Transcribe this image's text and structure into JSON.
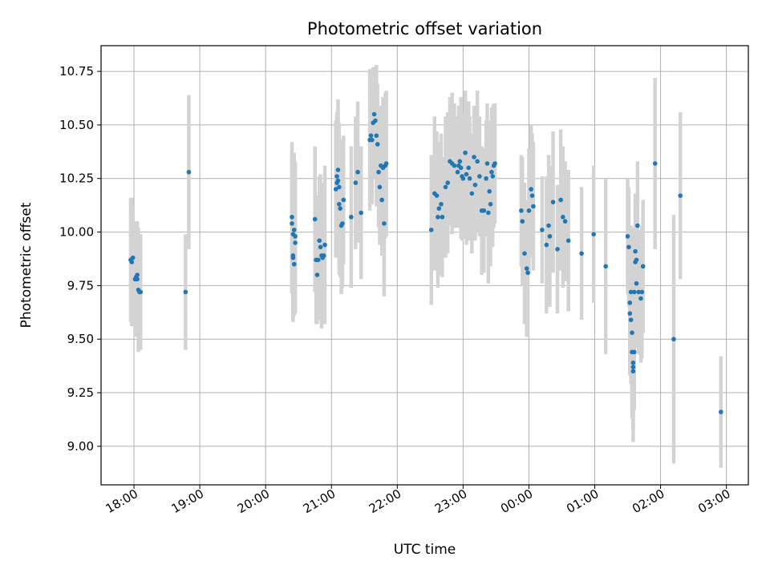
{
  "chart_data": {
    "type": "scatter",
    "title": "Photometric offset variation",
    "xlabel": "UTC time",
    "ylabel": "Photometric offset",
    "grid": true,
    "legend": "none",
    "x_unit": "UTC date-time",
    "xlim": [
      "17:30",
      "03:20"
    ],
    "ylim": [
      8.82,
      10.87
    ],
    "x_ticks": [
      "18:00",
      "19:00",
      "20:00",
      "21:00",
      "22:00",
      "23:00",
      "00:00",
      "01:00",
      "02:00",
      "03:00"
    ],
    "y_ticks": [
      "9.00",
      "9.25",
      "9.50",
      "9.75",
      "10.00",
      "10.25",
      "10.50",
      "10.75"
    ],
    "colors": {
      "marker": "#1f77b4",
      "errorbar": "#d3d3d3",
      "grid": "#b0b0b0"
    },
    "series": [
      {
        "points": [
          {
            "t": "17:57",
            "y": 9.87,
            "err": 0.29
          },
          {
            "t": "17:58",
            "y": 9.86,
            "err": 0.3
          },
          {
            "t": "17:59",
            "y": 9.88,
            "err": 0.24
          },
          {
            "t": "18:01",
            "y": 9.78,
            "err": 0.27
          },
          {
            "t": "18:02",
            "y": 9.79,
            "err": 0.26
          },
          {
            "t": "18:03",
            "y": 9.8,
            "err": 0.25
          },
          {
            "t": "18:03",
            "y": 9.78,
            "err": 0.24
          },
          {
            "t": "18:04",
            "y": 9.73,
            "err": 0.29
          },
          {
            "t": "18:05",
            "y": 9.72,
            "err": 0.27
          },
          {
            "t": "18:06",
            "y": 9.72,
            "err": 0.27
          },
          {
            "t": "18:47",
            "y": 9.72,
            "err": 0.27
          },
          {
            "t": "18:50",
            "y": 10.28,
            "err": 0.36
          },
          {
            "t": "20:24",
            "y": 10.07,
            "err": 0.35
          },
          {
            "t": "20:24",
            "y": 10.04,
            "err": 0.33
          },
          {
            "t": "20:25",
            "y": 9.99,
            "err": 0.35
          },
          {
            "t": "20:25",
            "y": 9.89,
            "err": 0.31
          },
          {
            "t": "20:25",
            "y": 9.88,
            "err": 0.28
          },
          {
            "t": "20:26",
            "y": 9.85,
            "err": 0.24
          },
          {
            "t": "20:26",
            "y": 10.01,
            "err": 0.36
          },
          {
            "t": "20:27",
            "y": 9.95,
            "err": 0.33
          },
          {
            "t": "20:27",
            "y": 9.98,
            "err": 0.35
          },
          {
            "t": "20:45",
            "y": 10.06,
            "err": 0.34
          },
          {
            "t": "20:46",
            "y": 9.87,
            "err": 0.3
          },
          {
            "t": "20:47",
            "y": 9.8,
            "err": 0.23
          },
          {
            "t": "20:48",
            "y": 9.87,
            "err": 0.27
          },
          {
            "t": "20:49",
            "y": 9.96,
            "err": 0.3
          },
          {
            "t": "20:50",
            "y": 9.93,
            "err": 0.34
          },
          {
            "t": "20:51",
            "y": 9.89,
            "err": 0.34
          },
          {
            "t": "20:52",
            "y": 9.88,
            "err": 0.29
          },
          {
            "t": "20:53",
            "y": 9.89,
            "err": 0.32
          },
          {
            "t": "20:54",
            "y": 9.94,
            "err": 0.37
          },
          {
            "t": "21:04",
            "y": 10.2,
            "err": 0.32
          },
          {
            "t": "21:05",
            "y": 10.23,
            "err": 0.33
          },
          {
            "t": "21:05",
            "y": 10.26,
            "err": 0.3
          },
          {
            "t": "21:06",
            "y": 10.29,
            "err": 0.33
          },
          {
            "t": "21:06",
            "y": 10.24,
            "err": 0.34
          },
          {
            "t": "21:07",
            "y": 10.21,
            "err": 0.3
          },
          {
            "t": "21:07",
            "y": 10.13,
            "err": 0.33
          },
          {
            "t": "21:08",
            "y": 10.11,
            "err": 0.32
          },
          {
            "t": "21:09",
            "y": 10.03,
            "err": 0.32
          },
          {
            "t": "21:10",
            "y": 10.04,
            "err": 0.3
          },
          {
            "t": "21:11",
            "y": 10.15,
            "err": 0.3
          },
          {
            "t": "21:18",
            "y": 10.07,
            "err": 0.33
          },
          {
            "t": "21:22",
            "y": 10.23,
            "err": 0.31
          },
          {
            "t": "21:24",
            "y": 10.28,
            "err": 0.33
          },
          {
            "t": "21:27",
            "y": 10.09,
            "err": 0.31
          },
          {
            "t": "21:35",
            "y": 10.43,
            "err": 0.33
          },
          {
            "t": "21:36",
            "y": 10.45,
            "err": 0.31
          },
          {
            "t": "21:37",
            "y": 10.43,
            "err": 0.3
          },
          {
            "t": "21:38",
            "y": 10.51,
            "err": 0.26
          },
          {
            "t": "21:39",
            "y": 10.55,
            "err": 0.21
          },
          {
            "t": "21:40",
            "y": 10.52,
            "err": 0.24
          },
          {
            "t": "21:41",
            "y": 10.45,
            "err": 0.33
          },
          {
            "t": "21:42",
            "y": 10.41,
            "err": 0.28
          },
          {
            "t": "21:43",
            "y": 10.28,
            "err": 0.26
          },
          {
            "t": "21:44",
            "y": 10.21,
            "err": 0.27
          },
          {
            "t": "21:45",
            "y": 10.31,
            "err": 0.28
          },
          {
            "t": "21:46",
            "y": 10.15,
            "err": 0.26
          },
          {
            "t": "21:47",
            "y": 10.3,
            "err": 0.33
          },
          {
            "t": "21:48",
            "y": 10.04,
            "err": 0.34
          },
          {
            "t": "21:49",
            "y": 10.31,
            "err": 0.34
          },
          {
            "t": "21:50",
            "y": 10.32,
            "err": 0.34
          },
          {
            "t": "22:31",
            "y": 10.01,
            "err": 0.35
          },
          {
            "t": "22:34",
            "y": 10.18,
            "err": 0.36
          },
          {
            "t": "22:36",
            "y": 10.17,
            "err": 0.3
          },
          {
            "t": "22:37",
            "y": 10.07,
            "err": 0.33
          },
          {
            "t": "22:38",
            "y": 10.11,
            "err": 0.31
          },
          {
            "t": "22:40",
            "y": 10.13,
            "err": 0.33
          },
          {
            "t": "22:41",
            "y": 10.07,
            "err": 0.28
          },
          {
            "t": "22:44",
            "y": 10.21,
            "err": 0.33
          },
          {
            "t": "22:46",
            "y": 10.23,
            "err": 0.33
          },
          {
            "t": "22:48",
            "y": 10.33,
            "err": 0.3
          },
          {
            "t": "22:50",
            "y": 10.32,
            "err": 0.33
          },
          {
            "t": "22:52",
            "y": 10.31,
            "err": 0.29
          },
          {
            "t": "22:55",
            "y": 10.28,
            "err": 0.26
          },
          {
            "t": "22:56",
            "y": 10.31,
            "err": 0.28
          },
          {
            "t": "22:57",
            "y": 10.33,
            "err": 0.26
          },
          {
            "t": "22:58",
            "y": 10.3,
            "err": 0.33
          },
          {
            "t": "22:59",
            "y": 10.26,
            "err": 0.3
          },
          {
            "t": "23:00",
            "y": 10.25,
            "err": 0.28
          },
          {
            "t": "23:02",
            "y": 10.37,
            "err": 0.29
          },
          {
            "t": "23:03",
            "y": 10.27,
            "err": 0.33
          },
          {
            "t": "23:05",
            "y": 10.3,
            "err": 0.31
          },
          {
            "t": "23:06",
            "y": 10.25,
            "err": 0.29
          },
          {
            "t": "23:08",
            "y": 10.18,
            "err": 0.28
          },
          {
            "t": "23:10",
            "y": 10.35,
            "err": 0.24
          },
          {
            "t": "23:11",
            "y": 10.22,
            "err": 0.26
          },
          {
            "t": "23:13",
            "y": 10.33,
            "err": 0.33
          },
          {
            "t": "23:15",
            "y": 10.26,
            "err": 0.28
          },
          {
            "t": "23:17",
            "y": 10.1,
            "err": 0.3
          },
          {
            "t": "23:19",
            "y": 10.1,
            "err": 0.29
          },
          {
            "t": "23:21",
            "y": 10.25,
            "err": 0.27
          },
          {
            "t": "23:22",
            "y": 10.32,
            "err": 0.28
          },
          {
            "t": "23:23",
            "y": 10.09,
            "err": 0.33
          },
          {
            "t": "23:24",
            "y": 10.19,
            "err": 0.33
          },
          {
            "t": "23:25",
            "y": 10.13,
            "err": 0.29
          },
          {
            "t": "23:26",
            "y": 10.28,
            "err": 0.3
          },
          {
            "t": "23:27",
            "y": 10.26,
            "err": 0.33
          },
          {
            "t": "23:28",
            "y": 10.31,
            "err": 0.29
          },
          {
            "t": "23:29",
            "y": 10.32,
            "err": 0.28
          },
          {
            "t": "23:53",
            "y": 10.1,
            "err": 0.26
          },
          {
            "t": "23:54",
            "y": 10.05,
            "err": 0.3
          },
          {
            "t": "23:56",
            "y": 9.9,
            "err": 0.33
          },
          {
            "t": "23:58",
            "y": 9.83,
            "err": 0.32
          },
          {
            "t": "23:59",
            "y": 9.81,
            "err": 0.3
          },
          {
            "t": "00:00",
            "y": 10.1,
            "err": 0.29
          },
          {
            "t": "00:02",
            "y": 10.2,
            "err": 0.3
          },
          {
            "t": "00:03",
            "y": 10.17,
            "err": 0.29
          },
          {
            "t": "00:04",
            "y": 10.12,
            "err": 0.3
          },
          {
            "t": "00:12",
            "y": 10.01,
            "err": 0.25
          },
          {
            "t": "00:16",
            "y": 9.94,
            "err": 0.32
          },
          {
            "t": "00:18",
            "y": 10.03,
            "err": 0.33
          },
          {
            "t": "00:19",
            "y": 9.98,
            "err": 0.33
          },
          {
            "t": "00:22",
            "y": 10.14,
            "err": 0.33
          },
          {
            "t": "00:26",
            "y": 9.92,
            "err": 0.3
          },
          {
            "t": "00:29",
            "y": 10.15,
            "err": 0.33
          },
          {
            "t": "00:31",
            "y": 10.07,
            "err": 0.33
          },
          {
            "t": "00:33",
            "y": 10.05,
            "err": 0.28
          },
          {
            "t": "00:36",
            "y": 9.96,
            "err": 0.33
          },
          {
            "t": "00:48",
            "y": 9.9,
            "err": 0.31
          },
          {
            "t": "00:59",
            "y": 9.99,
            "err": 0.32
          },
          {
            "t": "01:10",
            "y": 9.84,
            "err": 0.41
          },
          {
            "t": "01:30",
            "y": 9.98,
            "err": 0.27
          },
          {
            "t": "01:31",
            "y": 9.93,
            "err": 0.28
          },
          {
            "t": "01:32",
            "y": 9.67,
            "err": 0.33
          },
          {
            "t": "01:32",
            "y": 9.62,
            "err": 0.29
          },
          {
            "t": "01:33",
            "y": 9.59,
            "err": 0.3
          },
          {
            "t": "01:33",
            "y": 9.72,
            "err": 0.31
          },
          {
            "t": "01:34",
            "y": 9.53,
            "err": 0.3
          },
          {
            "t": "01:34",
            "y": 9.44,
            "err": 0.31
          },
          {
            "t": "01:35",
            "y": 9.39,
            "err": 0.27
          },
          {
            "t": "01:35",
            "y": 9.37,
            "err": 0.3
          },
          {
            "t": "01:35",
            "y": 9.35,
            "err": 0.33
          },
          {
            "t": "01:36",
            "y": 9.44,
            "err": 0.27
          },
          {
            "t": "01:36",
            "y": 9.72,
            "err": 0.3
          },
          {
            "t": "01:37",
            "y": 9.86,
            "err": 0.3
          },
          {
            "t": "01:37",
            "y": 9.91,
            "err": 0.27
          },
          {
            "t": "01:38",
            "y": 9.87,
            "err": 0.29
          },
          {
            "t": "01:38",
            "y": 9.76,
            "err": 0.3
          },
          {
            "t": "01:39",
            "y": 10.03,
            "err": 0.3
          },
          {
            "t": "01:40",
            "y": 9.72,
            "err": 0.29
          },
          {
            "t": "01:42",
            "y": 9.69,
            "err": 0.3
          },
          {
            "t": "01:43",
            "y": 9.72,
            "err": 0.31
          },
          {
            "t": "01:44",
            "y": 9.84,
            "err": 0.31
          },
          {
            "t": "01:55",
            "y": 10.32,
            "err": 0.4
          },
          {
            "t": "02:12",
            "y": 9.5,
            "err": 0.58
          },
          {
            "t": "02:18",
            "y": 10.17,
            "err": 0.39
          },
          {
            "t": "02:55",
            "y": 9.16,
            "err": 0.26
          }
        ]
      }
    ]
  }
}
